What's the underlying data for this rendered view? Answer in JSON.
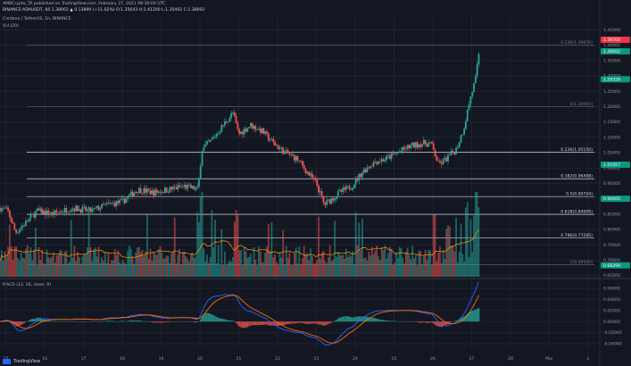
{
  "header": {
    "line1": "AMBCrypto_TA published on TradingView.com, February 27, 2021 08:39:00 UTC",
    "line2": "BINANCE:ADAUSDT, 60  1.38002  ▲ 0.13899 (+11.02%)  O:1.35643 H:1.41200 L:1.35402 C:1.38002",
    "title": "Cardano / TetherUS, 1h, BINANCE",
    "vol": "Vol (20)",
    "macd": "MACD (12, 26, close, 9)"
  },
  "logo_text": "TradingView",
  "colors": {
    "up": "#26a69a",
    "down": "#ef5350",
    "bg": "#131722",
    "macd": "#2962ff",
    "signal": "#ff6d00",
    "fib": "#d1d4dc",
    "green_tag": "#089981",
    "red_tag": "#f23645"
  },
  "price_tags": [
    {
      "text": "1.39700",
      "kind": "red",
      "price": 1.418
    },
    {
      "text": "1.38002",
      "kind": "green",
      "price": 1.38002
    },
    {
      "text": "1.29339",
      "kind": "green",
      "price": 1.289
    },
    {
      "text": "1.01057",
      "kind": "green",
      "price": 1.0106
    },
    {
      "text": "0.90000",
      "kind": "green",
      "price": 0.9
    },
    {
      "text": "0.68299",
      "kind": "green",
      "price": 0.683
    }
  ],
  "chart_data": {
    "type": "candlestick",
    "title": "Cardano / TetherUS, 1h, BINANCE",
    "price_axis": {
      "ticks": [
        "1.45000",
        "1.40000",
        "1.35000",
        "1.30000",
        "1.25000",
        "1.20000",
        "1.15000",
        "1.10000",
        "1.05000",
        "1.00000",
        "0.95000",
        "0.90000",
        "0.85000",
        "0.80000",
        "0.75000",
        "0.70000",
        "0.65000"
      ],
      "ylim": [
        0.64,
        1.46
      ]
    },
    "x_axis": {
      "ticks": [
        "15",
        "16",
        "17",
        "18",
        "19",
        "20",
        "21",
        "22",
        "23",
        "24",
        "25",
        "26",
        "27",
        "28",
        "Mar",
        "2"
      ],
      "tick_days": [
        15,
        16,
        17,
        18,
        19,
        20,
        21,
        22,
        23,
        24,
        25,
        26,
        27,
        28,
        29,
        30
      ],
      "xlim": [
        14.85,
        30.3
      ]
    },
    "fib_levels": [
      {
        "label": "0.236(1.39970)",
        "price": 1.3997,
        "dim": true
      },
      {
        "label": "0(1.20000)",
        "price": 1.2,
        "dim": true
      },
      {
        "label": "0.236(1.05150)",
        "price": 1.0515
      },
      {
        "label": "0.382(0.96498)",
        "price": 0.965
      },
      {
        "label": "0.5(0.90704)",
        "price": 0.907
      },
      {
        "label": "0.618(0.84906)",
        "price": 0.849
      },
      {
        "label": "0.786(0.77285)",
        "price": 0.7729
      },
      {
        "label": "1(0.68500)",
        "price": 0.685,
        "dim": true
      }
    ],
    "price_path": [
      [
        14.85,
        0.87
      ],
      [
        15.05,
        0.86
      ],
      [
        15.25,
        0.79
      ],
      [
        15.5,
        0.82
      ],
      [
        15.8,
        0.86
      ],
      [
        16.2,
        0.85
      ],
      [
        16.7,
        0.87
      ],
      [
        17.2,
        0.86
      ],
      [
        17.6,
        0.88
      ],
      [
        18.0,
        0.89
      ],
      [
        18.4,
        0.93
      ],
      [
        18.8,
        0.92
      ],
      [
        19.2,
        0.93
      ],
      [
        19.6,
        0.94
      ],
      [
        19.95,
        0.93
      ],
      [
        20.05,
        1.06
      ],
      [
        20.3,
        1.09
      ],
      [
        20.6,
        1.14
      ],
      [
        20.85,
        1.18
      ],
      [
        21.0,
        1.11
      ],
      [
        21.3,
        1.14
      ],
      [
        21.6,
        1.12
      ],
      [
        21.9,
        1.08
      ],
      [
        22.2,
        1.05
      ],
      [
        22.5,
        1.03
      ],
      [
        22.8,
        0.98
      ],
      [
        23.0,
        0.95
      ],
      [
        23.2,
        0.88
      ],
      [
        23.4,
        0.9
      ],
      [
        23.6,
        0.92
      ],
      [
        23.9,
        0.94
      ],
      [
        24.2,
        0.99
      ],
      [
        24.5,
        1.02
      ],
      [
        24.8,
        1.03
      ],
      [
        25.1,
        1.05
      ],
      [
        25.4,
        1.07
      ],
      [
        25.7,
        1.08
      ],
      [
        25.95,
        1.08
      ],
      [
        26.15,
        1.01
      ],
      [
        26.35,
        1.03
      ],
      [
        26.6,
        1.06
      ],
      [
        26.8,
        1.13
      ],
      [
        26.95,
        1.22
      ],
      [
        27.1,
        1.29
      ],
      [
        27.2,
        1.38
      ]
    ],
    "volume_ylim": [
      0,
      260
    ],
    "macd_axis": {
      "ticks": [
        "0.06000",
        "0.04000",
        "0.02000",
        "0.00000",
        "-0.02000",
        "-0.04000"
      ],
      "ylim": [
        -0.048,
        0.068
      ]
    }
  }
}
